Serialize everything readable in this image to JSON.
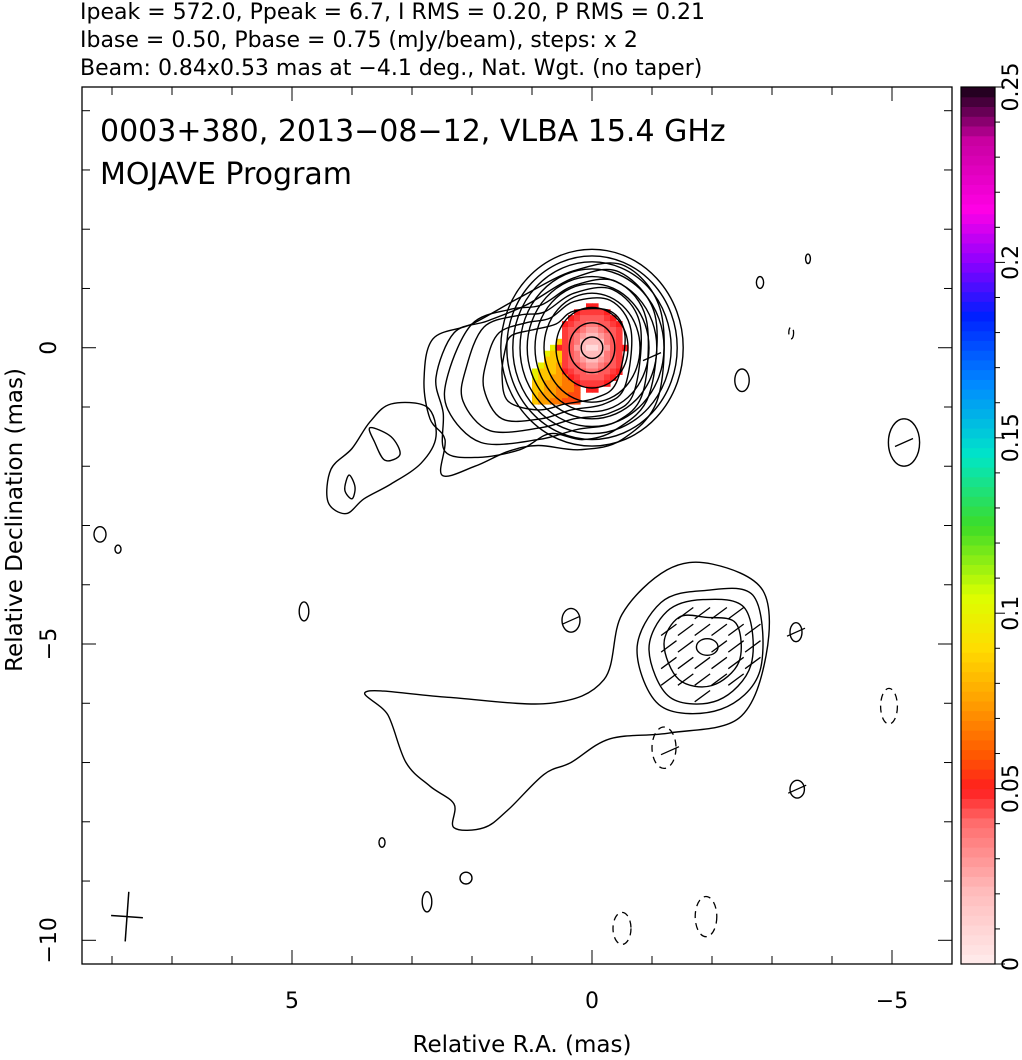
{
  "header": {
    "line1": "Ipeak = 572.0, Ppeak = 6.7, I RMS = 0.20, P RMS = 0.21",
    "line2": "Ibase = 0.50, Pbase = 0.75 (mJy/beam), steps: x 2",
    "line3": "Beam: 0.84x0.53 mas at −4.1 deg., Nat. Wgt. (no taper)"
  },
  "annotation": {
    "line1": "0003+380, 2013−08−12, VLBA 15.4 GHz",
    "line2": "MOJAVE Program"
  },
  "chart_data": {
    "type": "contour",
    "xlabel": "Relative R.A. (mas)",
    "ylabel": "Relative Declination (mas)",
    "xlim": [
      8.5,
      -6.0
    ],
    "ylim": [
      -10.4,
      4.4
    ],
    "x_ticks": [
      {
        "value": 5,
        "label": "5"
      },
      {
        "value": 0,
        "label": "0"
      },
      {
        "value": -5,
        "label": "−5"
      }
    ],
    "y_ticks": [
      {
        "value": 0,
        "label": "0"
      },
      {
        "value": -5,
        "label": "−5"
      },
      {
        "value": -10,
        "label": "−10"
      }
    ],
    "colorbar": {
      "min": 0,
      "max": 0.25,
      "ticks": [
        {
          "value": 0,
          "label": "0"
        },
        {
          "value": 0.05,
          "label": "0.05"
        },
        {
          "value": 0.1,
          "label": "0.1"
        },
        {
          "value": 0.15,
          "label": "0.15"
        },
        {
          "value": 0.2,
          "label": "0.2"
        },
        {
          "value": 0.25,
          "label": "0.25"
        }
      ]
    },
    "core": {
      "ra": 0.0,
      "dec": 0.0,
      "contour_radii": [
        [
          0.18,
          0.18
        ],
        [
          0.38,
          0.42
        ],
        [
          0.6,
          0.68
        ],
        [
          0.8,
          0.92
        ],
        [
          0.95,
          1.08
        ],
        [
          1.08,
          1.2
        ],
        [
          1.2,
          1.33
        ],
        [
          1.32,
          1.45
        ],
        [
          1.42,
          1.55
        ],
        [
          1.52,
          1.66
        ]
      ]
    },
    "inner_jet_contours": [
      [
        [
          1.45,
          -0.05
        ],
        [
          1.35,
          0.2
        ],
        [
          1.0,
          0.3
        ],
        [
          0.6,
          0.4
        ],
        [
          0.3,
          0.62
        ],
        [
          -0.3,
          0.62
        ],
        [
          -0.55,
          0.2
        ],
        [
          -0.4,
          -0.6
        ],
        [
          -0.05,
          -0.85
        ],
        [
          0.45,
          -0.95
        ],
        [
          0.9,
          -1.05
        ],
        [
          1.4,
          -0.9
        ],
        [
          1.5,
          -0.45
        ]
      ],
      [
        [
          1.75,
          -0.2
        ],
        [
          1.55,
          0.25
        ],
        [
          1.1,
          0.42
        ],
        [
          0.7,
          0.5
        ],
        [
          0.3,
          0.78
        ],
        [
          -0.3,
          0.8
        ],
        [
          -0.65,
          0.3
        ],
        [
          -0.55,
          -0.65
        ],
        [
          -0.2,
          -0.95
        ],
        [
          0.35,
          -1.05
        ],
        [
          0.85,
          -1.2
        ],
        [
          1.5,
          -1.2
        ],
        [
          1.8,
          -0.7
        ]
      ],
      [
        [
          2.1,
          -0.35
        ],
        [
          1.8,
          0.35
        ],
        [
          1.2,
          0.55
        ],
        [
          0.8,
          0.6
        ],
        [
          0.3,
          0.92
        ],
        [
          -0.35,
          0.98
        ],
        [
          -0.8,
          0.4
        ],
        [
          -0.7,
          -0.75
        ],
        [
          -0.3,
          -1.1
        ],
        [
          0.3,
          -1.2
        ],
        [
          0.85,
          -1.35
        ],
        [
          1.7,
          -1.4
        ],
        [
          2.15,
          -0.9
        ]
      ],
      [
        [
          2.4,
          -0.45
        ],
        [
          2.0,
          0.4
        ],
        [
          1.35,
          0.65
        ],
        [
          0.85,
          0.72
        ],
        [
          0.3,
          1.05
        ],
        [
          -0.4,
          1.12
        ],
        [
          -0.9,
          0.5
        ],
        [
          -0.85,
          -0.75
        ],
        [
          -0.4,
          -1.25
        ],
        [
          0.25,
          -1.38
        ],
        [
          0.9,
          -1.55
        ],
        [
          1.85,
          -1.6
        ],
        [
          2.4,
          -1.05
        ]
      ],
      [
        [
          2.45,
          -1.75
        ],
        [
          1.9,
          -1.85
        ],
        [
          1.2,
          -1.72
        ],
        [
          0.7,
          -1.45
        ],
        [
          0.15,
          -1.55
        ],
        [
          -0.4,
          -1.38
        ],
        [
          -0.95,
          -0.8
        ],
        [
          -1.05,
          0.55
        ],
        [
          -0.45,
          1.28
        ],
        [
          0.3,
          1.18
        ],
        [
          1.1,
          0.72
        ],
        [
          1.75,
          0.45
        ],
        [
          2.3,
          0.25
        ],
        [
          2.6,
          -0.5
        ],
        [
          2.48,
          -1.1
        ]
      ],
      [
        [
          2.45,
          -1.55
        ],
        [
          2.5,
          -2.15
        ],
        [
          1.95,
          -2.0
        ],
        [
          1.4,
          -1.75
        ],
        [
          0.9,
          -1.65
        ],
        [
          0.2,
          -1.72
        ],
        [
          -0.5,
          -1.55
        ],
        [
          -1.1,
          -0.85
        ],
        [
          -1.15,
          0.6
        ],
        [
          -0.55,
          1.38
        ],
        [
          0.3,
          1.3
        ],
        [
          1.2,
          0.85
        ],
        [
          2.0,
          0.4
        ],
        [
          2.65,
          0.15
        ],
        [
          2.8,
          -0.55
        ],
        [
          2.7,
          -1.2
        ]
      ]
    ],
    "knot_ne": [
      [
        3.35,
        -0.95
      ],
      [
        2.75,
        -1.0
      ],
      [
        2.6,
        -1.5
      ],
      [
        2.85,
        -1.95
      ],
      [
        3.35,
        -2.3
      ],
      [
        3.8,
        -2.55
      ],
      [
        4.1,
        -2.8
      ],
      [
        4.4,
        -2.6
      ],
      [
        4.35,
        -2.05
      ],
      [
        4.0,
        -1.7
      ],
      [
        3.7,
        -1.25
      ]
    ],
    "knot_ne_inner": [
      [
        3.7,
        -1.35
      ],
      [
        3.35,
        -1.5
      ],
      [
        3.2,
        -1.8
      ],
      [
        3.45,
        -1.9
      ],
      [
        3.62,
        -1.6
      ]
    ],
    "knot_ne_small": [
      [
        4.05,
        -2.15
      ],
      [
        3.95,
        -2.35
      ],
      [
        4.0,
        -2.55
      ],
      [
        4.12,
        -2.4
      ]
    ],
    "southern_component": {
      "outer": [
        [
          3.75,
          -5.8
        ],
        [
          2.4,
          -5.9
        ],
        [
          0.7,
          -6.0
        ],
        [
          -0.2,
          -5.6
        ],
        [
          -0.5,
          -4.5
        ],
        [
          -1.25,
          -3.75
        ],
        [
          -2.0,
          -3.65
        ],
        [
          -2.85,
          -4.1
        ],
        [
          -2.9,
          -5.2
        ],
        [
          -2.45,
          -6.25
        ],
        [
          -1.3,
          -6.5
        ],
        [
          -0.3,
          -6.6
        ],
        [
          0.35,
          -7.0
        ],
        [
          0.8,
          -7.2
        ],
        [
          1.4,
          -7.8
        ],
        [
          1.8,
          -8.1
        ],
        [
          2.3,
          -8.1
        ],
        [
          2.3,
          -7.7
        ],
        [
          2.7,
          -7.4
        ],
        [
          3.1,
          -7.0
        ],
        [
          3.4,
          -6.2
        ]
      ],
      "rings": [
        [
          [
            -1.9,
            -4.55
          ],
          [
            -2.4,
            -4.65
          ],
          [
            -2.45,
            -5.3
          ],
          [
            -2.0,
            -5.7
          ],
          [
            -1.45,
            -5.6
          ],
          [
            -1.2,
            -5.0
          ],
          [
            -1.45,
            -4.55
          ]
        ],
        [
          [
            -1.85,
            -4.25
          ],
          [
            -2.55,
            -4.4
          ],
          [
            -2.65,
            -5.35
          ],
          [
            -2.1,
            -5.95
          ],
          [
            -1.3,
            -5.9
          ],
          [
            -0.95,
            -5.1
          ],
          [
            -1.25,
            -4.45
          ]
        ],
        [
          [
            -1.85,
            -4.1
          ],
          [
            -2.7,
            -4.2
          ],
          [
            -2.8,
            -5.45
          ],
          [
            -2.15,
            -6.1
          ],
          [
            -1.15,
            -6.05
          ],
          [
            -0.75,
            -5.1
          ],
          [
            -1.15,
            -4.3
          ]
        ]
      ],
      "core_ring": {
        "ra": -1.92,
        "dec": -5.05,
        "rx": 0.18,
        "ry": 0.14
      }
    },
    "isolated_contours": [
      {
        "ra": 8.2,
        "dec": -3.15,
        "rx": 0.1,
        "ry": 0.13
      },
      {
        "ra": 7.9,
        "dec": -3.4,
        "rx": 0.05,
        "ry": 0.07
      },
      {
        "ra": 4.8,
        "dec": -4.45,
        "rx": 0.08,
        "ry": 0.16
      },
      {
        "ra": 0.35,
        "dec": -4.6,
        "rx": 0.15,
        "ry": 0.2
      },
      {
        "ra": 3.5,
        "dec": -8.35,
        "rx": 0.05,
        "ry": 0.08
      },
      {
        "ra": 2.1,
        "dec": -8.95,
        "rx": 0.1,
        "ry": 0.1
      },
      {
        "ra": 2.75,
        "dec": -9.35,
        "rx": 0.08,
        "ry": 0.17
      },
      {
        "ra": -2.5,
        "dec": -0.55,
        "rx": 0.12,
        "ry": 0.19
      },
      {
        "ra": -2.8,
        "dec": 1.1,
        "rx": 0.06,
        "ry": 0.1
      },
      {
        "ra": -3.6,
        "dec": 1.5,
        "rx": 0.04,
        "ry": 0.08
      },
      {
        "ra": -5.2,
        "dec": -1.6,
        "rx": 0.26,
        "ry": 0.4
      },
      {
        "ra": -3.42,
        "dec": -7.45,
        "rx": 0.12,
        "ry": 0.15
      },
      {
        "ra": -3.4,
        "dec": -4.8,
        "rx": 0.1,
        "ry": 0.16
      }
    ],
    "dashed_contours": [
      {
        "ra": -1.2,
        "dec": -6.75,
        "rx": 0.2,
        "ry": 0.35
      },
      {
        "ra": -4.95,
        "dec": -6.05,
        "rx": 0.14,
        "ry": 0.3
      },
      {
        "ra": -3.32,
        "dec": 0.25,
        "rx": 0.04,
        "ry": 0.1
      },
      {
        "ra": -0.5,
        "dec": -9.8,
        "rx": 0.15,
        "ry": 0.27
      },
      {
        "ra": -1.9,
        "dec": -9.6,
        "rx": 0.18,
        "ry": 0.34
      }
    ],
    "polarization_pixels": {
      "ra_range": [
        0.95,
        -0.6
      ],
      "dec_range": [
        0.8,
        -0.9
      ]
    },
    "beam": {
      "ra": 7.75,
      "dec": -9.6,
      "major": 0.84,
      "minor": 0.53,
      "pa_deg": -4.1
    }
  }
}
